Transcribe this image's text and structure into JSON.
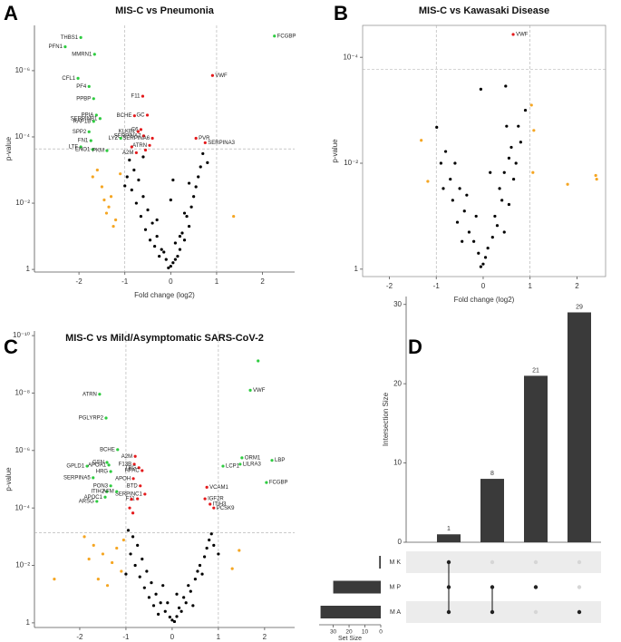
{
  "chart_data": [
    {
      "type": "scatter",
      "panel": "A",
      "title": "MIS-C vs Pneumonia",
      "xlabel": "Fold change (log2)",
      "ylabel": "p-value",
      "xlim": [
        -2.97,
        2.7
      ],
      "xticks": [
        -2,
        -1,
        0,
        1,
        2
      ],
      "ylog": true,
      "ylim": [
        1.2,
        4.3e-08
      ],
      "yticks": [
        1,
        {
          "value": 0.01,
          "label": "10⁻²"
        },
        {
          "value": 0.0001,
          "label": "10⁻⁴"
        },
        {
          "value": 1e-06,
          "label": "10⁻⁶"
        }
      ],
      "vlines": [
        -1,
        1
      ],
      "hline": 0.00023,
      "frame": false,
      "series": [
        {
          "color": "#000000",
          "x": [
            -0.9,
            -0.8,
            -0.7,
            -0.85,
            -0.6,
            -0.75,
            -0.5,
            -0.65,
            -0.4,
            -0.55,
            -0.3,
            -0.45,
            -0.2,
            -0.35,
            -0.1,
            -0.25,
            0,
            0.05,
            -0.05,
            0.1,
            0.2,
            0.15,
            0.3,
            0.25,
            0.4,
            0.35,
            0.45,
            0.5,
            0.55,
            0.6,
            0.65,
            0.4,
            -0.95,
            -0.6,
            0.7,
            -0.3,
            0.2,
            0.05,
            0,
            0.1,
            -0.15,
            0.3,
            -1.0,
            0.8
          ],
          "values": [
            0.0005,
            0.001,
            0.002,
            0.004,
            0.0063,
            0.01,
            0.016,
            0.025,
            0.04,
            0.063,
            0.1,
            0.13,
            0.25,
            0.2,
            0.5,
            0.4,
            0.8,
            0.63,
            0.9,
            0.5,
            0.25,
            0.4,
            0.13,
            0.08,
            0.05,
            0.025,
            0.013,
            0.0063,
            0.0032,
            0.0016,
            0.0008,
            0.0025,
            0.0016,
            0.0004,
            0.00032,
            0.032,
            0.1,
            0.002,
            0.008,
            0.16,
            0.3,
            0.02,
            0.003,
            0.0006
          ]
        },
        {
          "color": "#f5a623",
          "x": [
            -1.7,
            -1.5,
            -1.3,
            -1.4,
            -1.2,
            -1.6,
            -1.1,
            -1.25,
            -1.45,
            -1.35,
            1.37
          ],
          "values": [
            0.0016,
            0.0032,
            0.0063,
            0.02,
            0.032,
            0.001,
            0.0013,
            0.05,
            0.008,
            0.013,
            0.025
          ]
        },
        {
          "color": "#e41a1c",
          "x": [
            -0.61,
            -0.79,
            -0.51,
            -0.65,
            -0.71,
            -0.59,
            -0.4,
            -0.46,
            -0.75,
            0.91,
            0.55,
            0.75,
            -0.85,
            -0.55
          ],
          "values": [
            5.9e-06,
            2.3e-05,
            2.2e-05,
            6e-05,
            6.9e-05,
            9.3e-05,
            0.00011,
            0.00018,
            0.0003,
            1.4e-06,
            0.00011,
            0.00015,
            0.0002,
            0.00025
          ],
          "labels": [
            "F11",
            "BCHE",
            "GC",
            "C6",
            "KLKB1",
            "SERPINA7",
            "SERPINA6",
            "ATRN",
            "A2M",
            "VWF",
            "PVR",
            "SERPINA3",
            null,
            null
          ]
        },
        {
          "color": "#2ecc40",
          "x": [
            -1.96,
            -2.3,
            -1.66,
            -2.02,
            -1.78,
            -1.68,
            -1.62,
            -1.54,
            -1.68,
            -1.78,
            -1.74,
            -1.96,
            -1.7,
            -1.39,
            -1.09,
            2.26
          ],
          "values": [
            1e-07,
            1.9e-07,
            3.2e-07,
            1.7e-06,
            3e-06,
            7e-06,
            2.2e-05,
            2.8e-05,
            3.4e-05,
            7e-05,
            0.00013,
            0.0002,
            0.00024,
            0.00026,
            0.00011,
            9e-08
          ],
          "labels": [
            "THBS1",
            "PFN1",
            "MMRN1",
            "CFL1",
            "PF4",
            "PPBP",
            "PPIA",
            "SERPINB1",
            "RAP1B",
            "SPP2",
            "FN1",
            "LTF",
            "ENO1",
            "PKM",
            "LYZ",
            "FCGBP"
          ]
        }
      ]
    },
    {
      "type": "scatter",
      "panel": "B",
      "title": "MIS-C vs Kawasaki Disease",
      "xlabel": "Fold change (log2)",
      "ylabel": "p-value",
      "xlim": [
        -2.57,
        2.61
      ],
      "xticks": [
        -2,
        -1,
        0,
        1,
        2
      ],
      "ylog": true,
      "ylim": [
        1.38,
        2.5e-05
      ],
      "yticks": [
        1,
        {
          "value": 0.01,
          "label": "10⁻²"
        },
        {
          "value": 0.0001,
          "label": "10⁻⁴"
        }
      ],
      "vlines": [
        -1,
        1
      ],
      "hline": 0.00017,
      "frame": true,
      "series": [
        {
          "color": "#000000",
          "x": [
            -0.99,
            0.48,
            0.9,
            0.75,
            0.8,
            -0.8,
            -0.6,
            -0.7,
            -0.5,
            -0.65,
            -0.4,
            -0.55,
            -0.3,
            -0.2,
            -0.1,
            0,
            0.05,
            -0.05,
            0.1,
            0.2,
            0.3,
            0.25,
            0.4,
            0.35,
            0.45,
            0.55,
            0.6,
            0.65,
            0.7,
            -0.9,
            -0.85,
            -0.45,
            0.45,
            0.55,
            -0.35,
            0.15,
            -0.15,
            -0.05,
            0.5
          ],
          "values": [
            0.0021,
            0.00035,
            0.001,
            0.002,
            0.004,
            0.006,
            0.01,
            0.02,
            0.03,
            0.05,
            0.08,
            0.13,
            0.2,
            0.3,
            0.5,
            0.8,
            0.6,
            0.9,
            0.4,
            0.25,
            0.15,
            0.1,
            0.05,
            0.03,
            0.015,
            0.008,
            0.005,
            0.02,
            0.01,
            0.01,
            0.03,
            0.3,
            0.2,
            0.06,
            0.04,
            0.015,
            0.1,
            0.0004,
            0.002
          ]
        },
        {
          "color": "#f5a623",
          "x": [
            -1.32,
            -1.18,
            1.03,
            1.08,
            1.06,
            1.8,
            2.4,
            2.42
          ],
          "values": [
            0.0037,
            0.022,
            0.0008,
            0.0024,
            0.015,
            0.025,
            0.017,
            0.02
          ]
        },
        {
          "color": "#e41a1c",
          "x": [
            0.64
          ],
          "values": [
            3.7e-05
          ],
          "labels": [
            "VWF"
          ]
        }
      ]
    },
    {
      "type": "scatter",
      "panel": "C",
      "title": "MIS-C vs Mild/Asymptomatic  SARS-CoV-2",
      "ylabel": "p-value",
      "xlim": [
        -2.98,
        2.65
      ],
      "xticks": [
        -2,
        -1,
        0,
        1,
        2
      ],
      "ylog": true,
      "ylim": [
        1.45,
        6.9e-11
      ],
      "yticks": [
        1,
        {
          "value": 0.01,
          "label": "10⁻²"
        },
        {
          "value": 0.0001,
          "label": "10⁻⁴"
        },
        {
          "value": 1e-06,
          "label": "10⁻⁶"
        },
        {
          "value": 1e-08,
          "label": "10⁻⁸"
        },
        {
          "value": 1e-10,
          "label": "10⁻¹⁰"
        }
      ],
      "vlines": [
        -1,
        1
      ],
      "hline": 0.00074,
      "frame": false,
      "series": [
        {
          "color": "#000000",
          "x": [
            -0.95,
            -0.85,
            -0.75,
            -0.9,
            -0.65,
            -0.8,
            -0.55,
            -0.7,
            -0.45,
            -0.6,
            -0.35,
            -0.5,
            -0.25,
            -0.4,
            -0.15,
            -0.3,
            -0.05,
            0,
            0.05,
            0.1,
            0.2,
            0.15,
            0.3,
            0.25,
            0.4,
            0.35,
            0.5,
            0.55,
            0.6,
            0.7,
            0.75,
            0.8,
            0.85,
            0.65,
            0.9,
            -0.2,
            0.1,
            -0.1,
            0.45,
            -1.0,
            1.0
          ],
          "values": [
            0.0006,
            0.001,
            0.002,
            0.004,
            0.006,
            0.01,
            0.016,
            0.025,
            0.04,
            0.06,
            0.1,
            0.13,
            0.2,
            0.25,
            0.4,
            0.5,
            0.63,
            0.8,
            0.9,
            0.6,
            0.4,
            0.3,
            0.2,
            0.13,
            0.08,
            0.05,
            0.03,
            0.016,
            0.01,
            0.005,
            0.0025,
            0.0013,
            0.0008,
            0.02,
            0.002,
            0.05,
            0.1,
            0.2,
            0.25,
            0.02,
            0.004
          ]
        },
        {
          "color": "#f5a623",
          "x": [
            -2.55,
            -1.9,
            -1.7,
            -1.5,
            -1.3,
            -1.1,
            -1.6,
            -1.4,
            -1.2,
            -1.8,
            -1.05,
            1.3,
            1.45
          ],
          "values": [
            0.03,
            0.001,
            0.002,
            0.004,
            0.008,
            0.016,
            0.03,
            0.05,
            0.0025,
            0.006,
            0.0013,
            0.013,
            0.003
          ]
        },
        {
          "color": "#e41a1c",
          "x": [
            -0.8,
            -0.82,
            -0.72,
            -0.65,
            -0.84,
            -0.69,
            -0.59,
            -0.75,
            0.75,
            0.71,
            0.82,
            0.9,
            -0.88,
            -0.92,
            -0.85
          ],
          "values": [
            1.6e-06,
            3e-06,
            4e-06,
            5e-06,
            9.5e-06,
            1.7e-05,
            3.3e-05,
            4.8e-05,
            1.9e-05,
            4.8e-05,
            7.4e-05,
            0.0001,
            5e-05,
            0.0001,
            0.00015
          ],
          "labels": [
            "A2M",
            "F13B",
            "TBG",
            "HPAC",
            "APOH",
            "BTD",
            "SERPINC1",
            "F11",
            "VCAM1",
            "IGF2R",
            "ITIH3",
            "PCSK9",
            null,
            null,
            null
          ]
        },
        {
          "color": "#2ecc40",
          "x": [
            -1.57,
            -1.43,
            1.69,
            1.86,
            -1.18,
            1.51,
            2.16,
            1.47,
            1.1,
            2.04,
            -1.41,
            -1.84,
            -1.37,
            -1.33,
            -1.71,
            -1.33,
            -1.41,
            -1.2,
            -1.45,
            -1.63
          ],
          "values": [
            1.1e-08,
            7.4e-08,
            8e-09,
            7.6e-10,
            9.3e-07,
            1.8e-06,
            2.2e-06,
            3e-06,
            3.5e-06,
            1.3e-05,
            2.6e-06,
            3.5e-06,
            3.2e-06,
            5.4e-06,
            8.9e-06,
            1.7e-05,
            2.7e-05,
            2.7e-05,
            4.2e-05,
            5.9e-05
          ],
          "labels": [
            "ATRN",
            "PGLYRP2",
            "VWF",
            null,
            "BCHE",
            "ORM1",
            "LBP",
            "LILRA3",
            "LCP1",
            "FCGBP",
            "GSN",
            "GPLD1",
            "APOA1",
            "HRG",
            "SERPINA5",
            "PON3",
            "ITIH2",
            "AFM",
            "APOC1",
            "ARSG"
          ]
        }
      ]
    },
    {
      "type": "upset",
      "panel": "D",
      "ylabel": "Intersection Size",
      "values": [
        1,
        8,
        21,
        29
      ],
      "color": "#3a3a3a",
      "ylim": [
        0,
        31
      ],
      "yticks": [
        0,
        10,
        20,
        30
      ],
      "sets": [
        "M K",
        "M P",
        "M A"
      ],
      "set_sizes": [
        1,
        30,
        38
      ],
      "set_size_lim": [
        0,
        38.9
      ],
      "set_size_ticks": [
        30,
        20,
        10,
        0
      ],
      "set_size_label": "Set Size",
      "membership": [
        [
          true,
          true,
          true
        ],
        [
          false,
          true,
          true
        ],
        [
          false,
          true,
          false
        ],
        [
          false,
          false,
          true
        ]
      ]
    }
  ]
}
